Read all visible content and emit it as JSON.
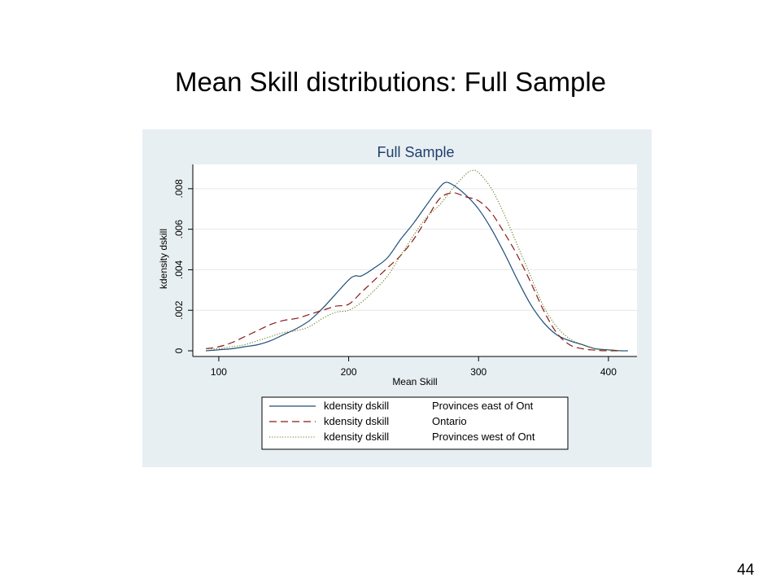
{
  "slide": {
    "title": "Mean Skill distributions: Full Sample",
    "page_number": "44"
  },
  "colors": {
    "panel_background": "#e8eff2",
    "plot_background": "#ffffff",
    "title": "#1e3f6e",
    "east": "#1f4e79",
    "ontario": "#8b1a1a",
    "west": "#6b7a1e",
    "grid": "#e3e8ea"
  },
  "chart_data": {
    "type": "line",
    "title": "Full Sample",
    "xlabel": "Mean Skill",
    "ylabel": "kdensity dskill",
    "xlim": [
      80,
      422
    ],
    "ylim": [
      0,
      0.0092
    ],
    "x_ticks": [
      100,
      200,
      300,
      400
    ],
    "x_tick_labels": [
      "100",
      "200",
      "300",
      "400"
    ],
    "y_ticks": [
      0,
      0.002,
      0.004,
      0.006,
      0.008
    ],
    "y_tick_labels": [
      "0",
      ".002",
      ".004",
      ".006",
      ".008"
    ],
    "grid": "horizontal",
    "legend_position": "bottom",
    "series": [
      {
        "name": "Provinces east of Ont",
        "legend_label": "kdensity dskill",
        "line_style": "solid",
        "x": [
          90,
          100,
          110,
          120,
          130,
          140,
          150,
          160,
          170,
          180,
          190,
          200,
          205,
          210,
          220,
          230,
          240,
          250,
          260,
          268,
          274,
          280,
          290,
          300,
          310,
          320,
          330,
          340,
          350,
          360,
          370,
          380,
          390,
          400,
          410,
          415
        ],
        "y": [
          0.0,
          5e-05,
          0.0001,
          0.0002,
          0.0003,
          0.0005,
          0.0008,
          0.0011,
          0.0015,
          0.0021,
          0.0028,
          0.0035,
          0.0037,
          0.0037,
          0.0041,
          0.0046,
          0.0055,
          0.0063,
          0.0072,
          0.0079,
          0.0083,
          0.0082,
          0.0077,
          0.007,
          0.006,
          0.0048,
          0.0035,
          0.0023,
          0.0014,
          0.0008,
          0.0005,
          0.0003,
          0.0001,
          5e-05,
          0.0,
          0.0
        ]
      },
      {
        "name": "Ontario",
        "legend_label": "kdensity dskill",
        "line_style": "dashed",
        "x": [
          90,
          100,
          110,
          120,
          130,
          140,
          150,
          160,
          170,
          180,
          190,
          200,
          210,
          220,
          230,
          240,
          250,
          260,
          270,
          280,
          290,
          300,
          310,
          320,
          330,
          340,
          350,
          360,
          370,
          380,
          390,
          400,
          410
        ],
        "y": [
          0.0001,
          0.0002,
          0.0004,
          0.0007,
          0.001,
          0.0013,
          0.0015,
          0.0016,
          0.0018,
          0.002,
          0.0022,
          0.0023,
          0.0029,
          0.0035,
          0.0041,
          0.0047,
          0.0055,
          0.0065,
          0.0075,
          0.0078,
          0.0076,
          0.0074,
          0.0068,
          0.0058,
          0.0047,
          0.0034,
          0.002,
          0.0009,
          0.0003,
          0.0001,
          3e-05,
          0.0,
          0.0
        ]
      },
      {
        "name": "Provinces west of Ont",
        "legend_label": "kdensity dskill",
        "line_style": "dotted",
        "x": [
          90,
          100,
          110,
          120,
          130,
          140,
          150,
          160,
          170,
          180,
          190,
          200,
          210,
          220,
          230,
          240,
          250,
          260,
          270,
          280,
          290,
          295,
          300,
          310,
          320,
          330,
          340,
          350,
          360,
          370,
          380,
          390,
          400,
          410
        ],
        "y": [
          0.0001,
          0.0001,
          0.0002,
          0.0003,
          0.0005,
          0.0007,
          0.0009,
          0.001,
          0.0012,
          0.0016,
          0.0019,
          0.002,
          0.0024,
          0.003,
          0.0037,
          0.0047,
          0.0057,
          0.0066,
          0.0072,
          0.008,
          0.0087,
          0.0089,
          0.0088,
          0.008,
          0.0067,
          0.0052,
          0.0037,
          0.0022,
          0.0012,
          0.0006,
          0.0003,
          0.0001,
          3e-05,
          0.0
        ]
      }
    ]
  }
}
